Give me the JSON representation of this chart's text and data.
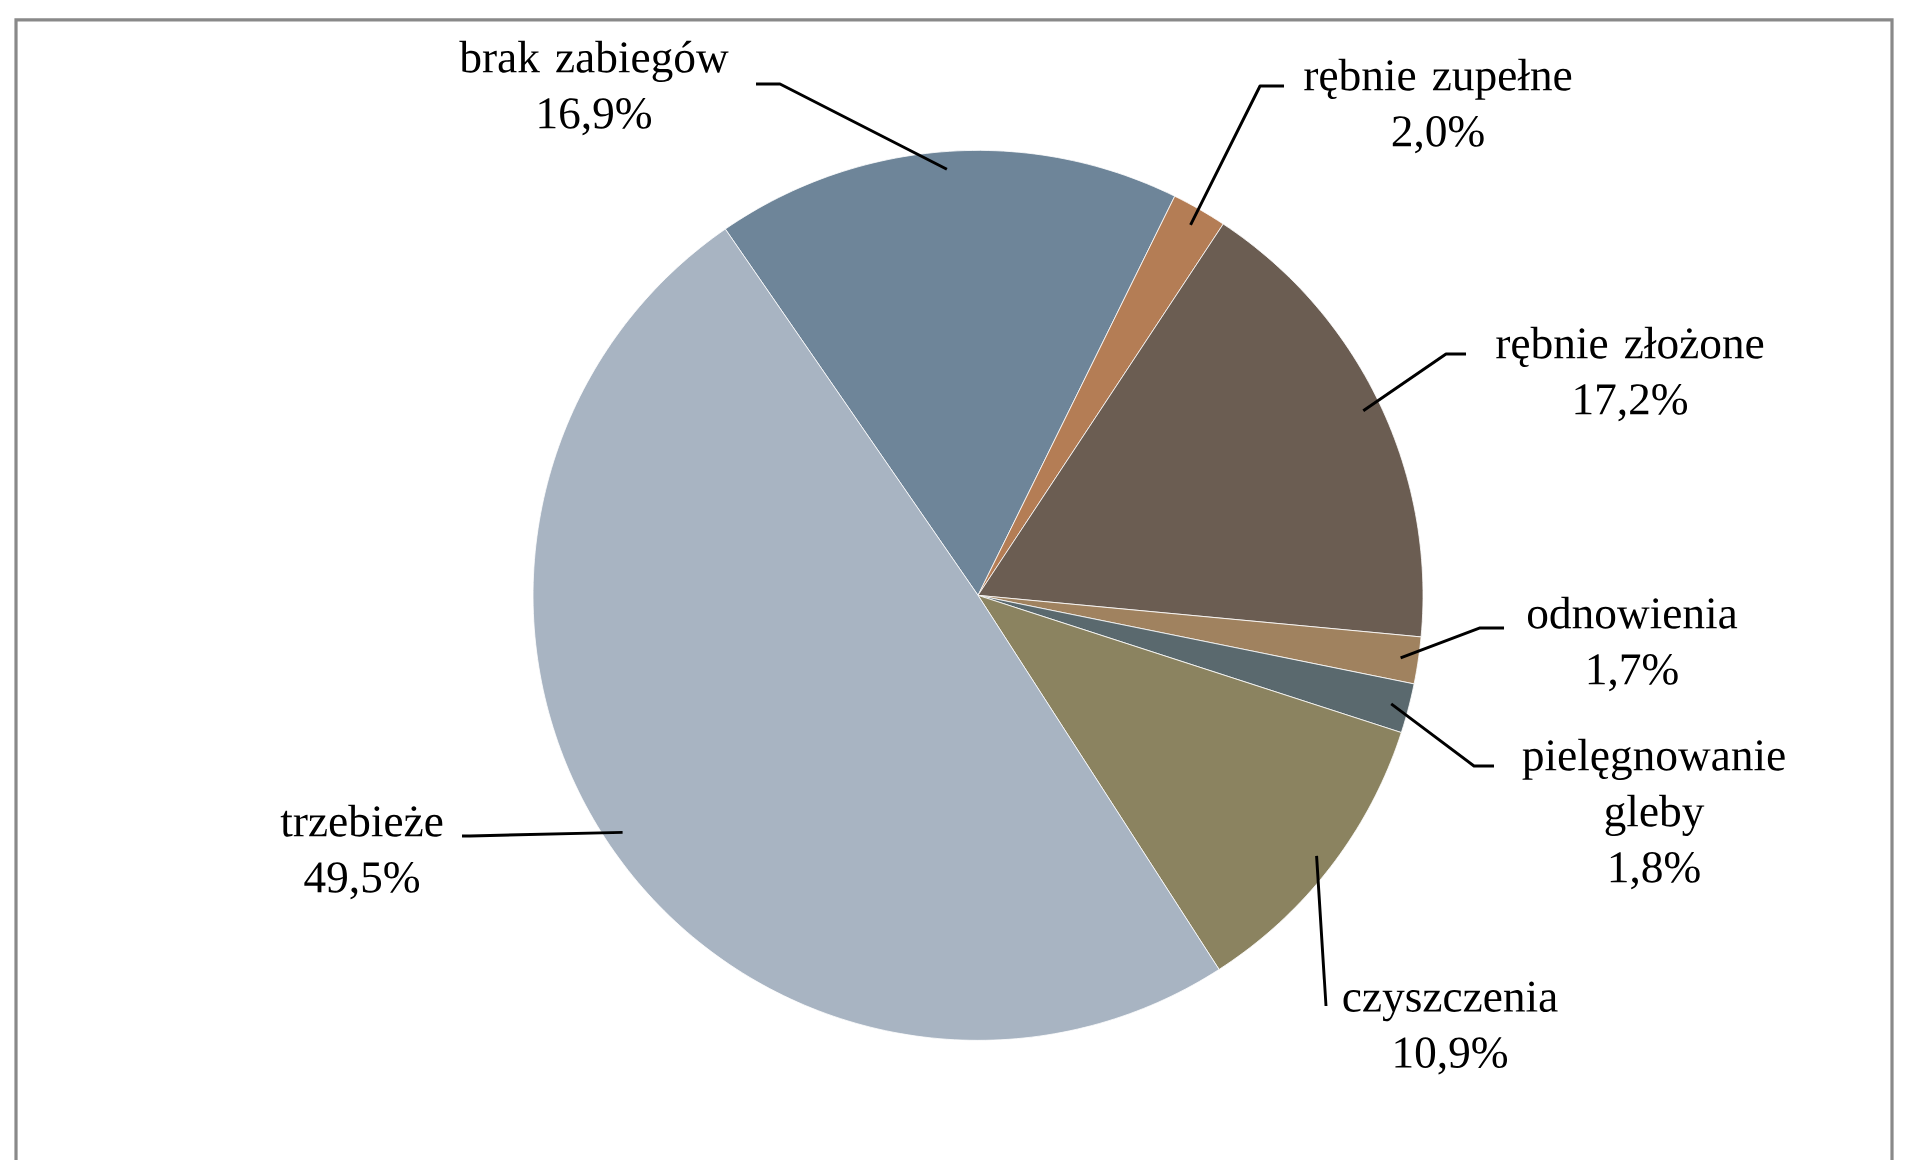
{
  "chart_data": {
    "type": "pie",
    "categories": [
      "brak zabiegów",
      "rębnie zupełne",
      "rębnie złożone",
      "odnowienia",
      "pielęgnowanie gleby",
      "czyszczenia",
      "trzebieże"
    ],
    "values": [
      16.9,
      2.0,
      17.2,
      1.7,
      1.8,
      10.9,
      49.5
    ],
    "value_labels": [
      "16,9%",
      "2,0%",
      "17,2%",
      "1,7%",
      "1,8%",
      "10,9%",
      "49,5%"
    ],
    "colors": [
      "#6e8599",
      "#b47d55",
      "#6b5d52",
      "#a0825f",
      "#5a696e",
      "#8b8360",
      "#a8b4c2"
    ]
  }
}
